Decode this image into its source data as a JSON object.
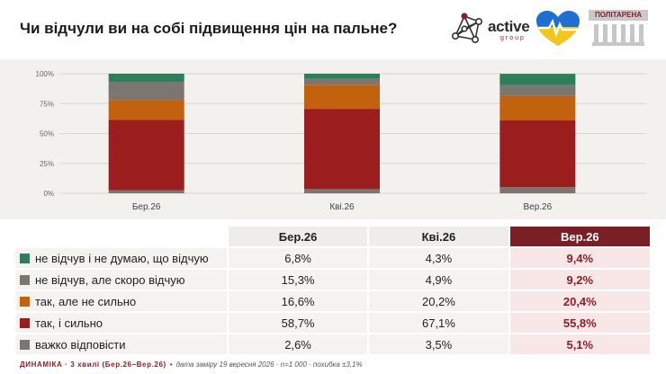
{
  "title": "Чи відчули ви на собі підвищення цін на пальне?",
  "logos": {
    "active_brand": "active",
    "active_sub": "group",
    "politarena": "ПОЛІТАРЕНА"
  },
  "colors": {
    "accent": "#7a1f25",
    "highlight_bg": "#f9e6e6",
    "series": [
      "#2e7d5b",
      "#7b7670",
      "#c2620f",
      "#9b1d1d",
      "#7b7670"
    ]
  },
  "chart_data": {
    "type": "bar",
    "stacked": true,
    "categories": [
      "Бер.26",
      "Кві.26",
      "Вер.26"
    ],
    "series": [
      {
        "name": "важко відповісти",
        "values": [
          2.6,
          3.5,
          5.1
        ]
      },
      {
        "name": "так, і сильно",
        "values": [
          58.7,
          67.1,
          55.8
        ]
      },
      {
        "name": "так, але не сильно",
        "values": [
          16.6,
          20.2,
          20.4
        ]
      },
      {
        "name": "не відчув, але скоро відчую",
        "values": [
          15.3,
          4.9,
          9.2
        ]
      },
      {
        "name": "не відчув і не думаю, що відчую",
        "values": [
          6.8,
          4.3,
          9.4
        ]
      }
    ],
    "yticks": [
      "0%",
      "25%",
      "50%",
      "75%",
      "100%"
    ],
    "ylim": [
      0,
      100
    ],
    "grid": true
  },
  "table": {
    "headers": [
      "Бер.26",
      "Кві.26",
      "Вер.26"
    ],
    "rows": [
      {
        "label": "не відчув і не думаю, що відчую",
        "values": [
          "6,8%",
          "4,3%",
          "9,4%"
        ]
      },
      {
        "label": "не відчув, але скоро відчую",
        "values": [
          "15,3%",
          "4,9%",
          "9,2%"
        ]
      },
      {
        "label": "так, але не сильно",
        "values": [
          "16,6%",
          "20,2%",
          "20,4%"
        ]
      },
      {
        "label": "так, і сильно",
        "values": [
          "58,7%",
          "67,1%",
          "55,8%"
        ]
      },
      {
        "label": "важко відповісти",
        "values": [
          "2,6%",
          "3,5%",
          "5,1%"
        ]
      }
    ]
  },
  "footer": {
    "lead": "ДИНАМІКА · 3 хвилі (Бер.26–Вер.26)",
    "sep": "•",
    "meta": "дата заміру 19 вересня 2026 · n=1 000 · похибка ±3,1%"
  }
}
